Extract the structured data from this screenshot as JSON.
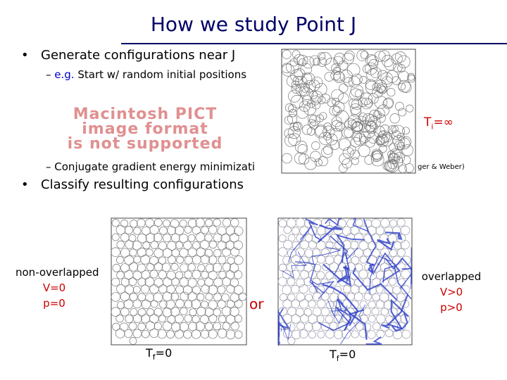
{
  "title": "How we study Point J",
  "bullets": [
    {
      "text": "Generate configurations near J",
      "sub": [
        {
          "prefix": "e.g.",
          "text": "Start w/ random initial positions"
        },
        {
          "text": "Conjugate gradient energy minimizati",
          "tail": "ger & Weber)"
        }
      ]
    },
    {
      "text": "Classify resulting configurations"
    }
  ],
  "placeholder": [
    "Macintosh PICT",
    "image format",
    "is not supported"
  ],
  "initial_label": {
    "base": "T",
    "sub": "i",
    "rest": "=∞"
  },
  "left_panel": {
    "lines": [
      "non-overlapped",
      "V=0",
      "p=0"
    ],
    "caption": {
      "base": "T",
      "sub": "f",
      "rest": "=0"
    }
  },
  "connector": "or",
  "right_panel": {
    "lines": [
      "overlapped",
      "V>0",
      "p>0"
    ],
    "caption": {
      "base": "T",
      "sub": "f",
      "rest": "=0"
    }
  }
}
